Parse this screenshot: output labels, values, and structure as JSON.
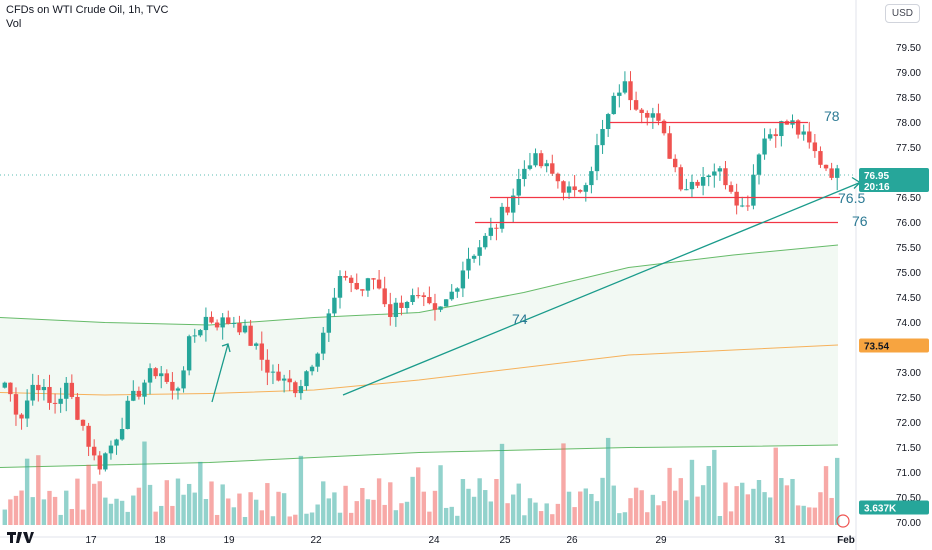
{
  "header": {
    "title": "CFDs on WTI Crude Oil, 1h, TVC",
    "volume_label": "Vol"
  },
  "currency": "USD",
  "colors": {
    "up": "#26a69a",
    "down": "#ef5350",
    "level": "#f23645",
    "trend": "#1a9b8b",
    "band": "#4caf50",
    "ma": "#f7a440",
    "text_annot": "#2c7a94"
  },
  "chart_data": {
    "type": "candlestick",
    "y_axis_ticks": [
      "79.50",
      "79.00",
      "78.50",
      "78.00",
      "77.50",
      "77.00",
      "76.50",
      "76.00",
      "75.50",
      "75.00",
      "74.50",
      "74.00",
      "73.50",
      "73.00",
      "72.50",
      "72.00",
      "71.50",
      "71.00",
      "70.50",
      "70.00"
    ],
    "ylim": [
      69.95,
      79.85
    ],
    "x_axis_ticks": [
      "17",
      "18",
      "19",
      "22",
      "24",
      "25",
      "26",
      "29",
      "31",
      "Feb"
    ],
    "price_labels": {
      "current_price": "76.95",
      "countdown": "20:16",
      "ma_value": "73.54",
      "volume_value": "3.637K"
    },
    "annotations": [
      "78",
      "76.5",
      "76",
      "74"
    ],
    "horizontal_levels": [
      78.0,
      76.5,
      76.0
    ],
    "trendline": {
      "from": 72.55,
      "to": 76.8
    },
    "series": [
      {
        "name": "upper band",
        "values": [
          74.1,
          74.0,
          73.95,
          74.1,
          74.2,
          74.6,
          75.1,
          75.35,
          75.55
        ]
      },
      {
        "name": "moving average",
        "values": [
          72.6,
          72.55,
          72.58,
          72.65,
          72.85,
          73.1,
          73.35,
          73.45,
          73.55
        ]
      },
      {
        "name": "lower band",
        "values": [
          71.1,
          71.15,
          71.2,
          71.3,
          71.4,
          71.45,
          71.5,
          71.52,
          71.55
        ]
      }
    ],
    "close_path": [
      72.8,
      72.1,
      72.9,
      72.3,
      72.7,
      72.0,
      71.1,
      71.6,
      72.3,
      72.8,
      73.1,
      72.5,
      73.6,
      74.1,
      74.0,
      74.05,
      73.6,
      73.1,
      72.8,
      72.7,
      73.3,
      74.1,
      75.0,
      74.6,
      74.9,
      74.2,
      74.5,
      74.4,
      74.1,
      74.6,
      75.3,
      75.6,
      76.0,
      76.6,
      77.3,
      77.1,
      76.8,
      76.5,
      77.1,
      78.0,
      78.8,
      78.4,
      78.2,
      77.5,
      76.7,
      76.9,
      77.1,
      76.8,
      76.2,
      77.6,
      77.9,
      78.0,
      77.6,
      77.2,
      76.95
    ]
  }
}
